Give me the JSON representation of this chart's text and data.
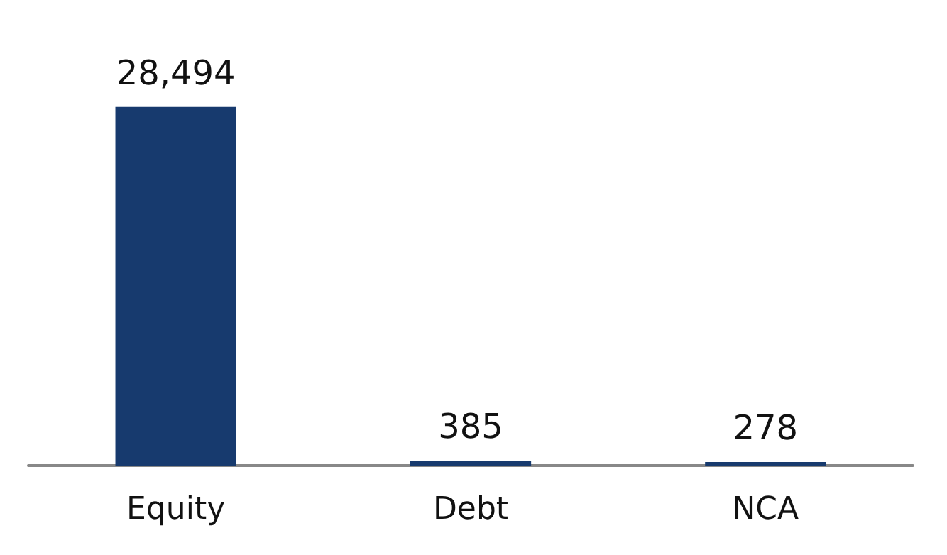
{
  "chart_data": {
    "type": "bar",
    "categories": [
      "Equity",
      "Debt",
      "NCA"
    ],
    "values": [
      28494,
      385,
      278
    ],
    "value_labels": [
      "28,494",
      "385",
      "278"
    ],
    "color": "#173a6e"
  }
}
